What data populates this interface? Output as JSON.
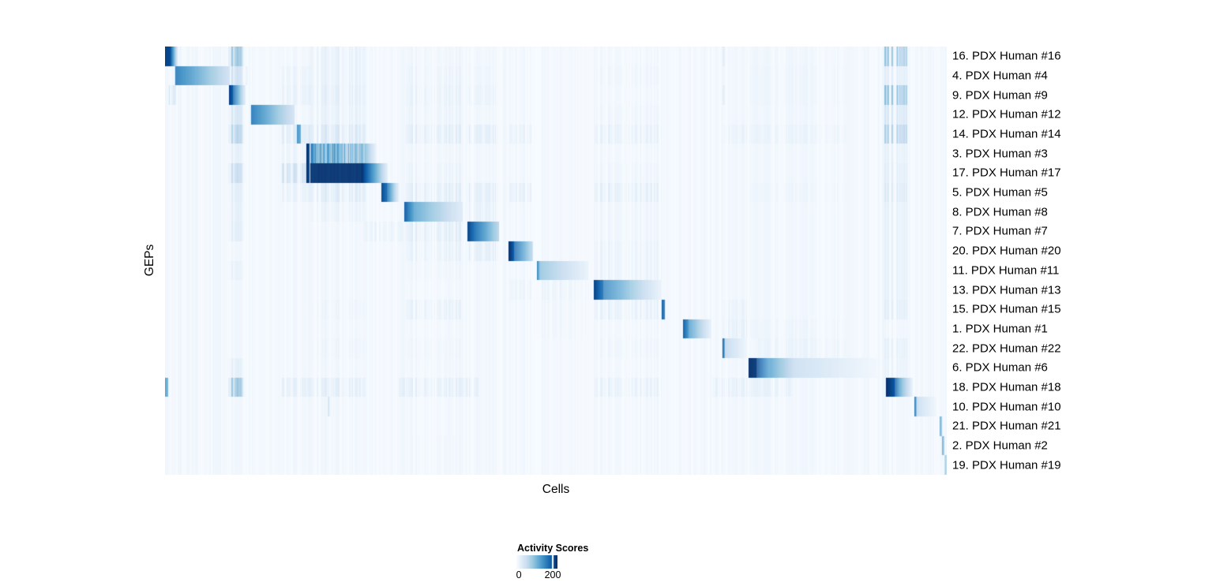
{
  "page": {
    "background": "#ffffff"
  },
  "chart_data": {
    "type": "heatmap",
    "title": "",
    "xlabel": "Cells",
    "ylabel": "GEPs",
    "n_rows": 22,
    "grid": false,
    "legend_position": "bottom-center",
    "colormap": {
      "name": "Blues",
      "stops": [
        [
          0.0,
          247,
          251,
          255
        ],
        [
          0.13,
          222,
          235,
          247
        ],
        [
          0.26,
          198,
          219,
          239
        ],
        [
          0.39,
          158,
          202,
          225
        ],
        [
          0.52,
          107,
          174,
          214
        ],
        [
          0.65,
          66,
          146,
          198
        ],
        [
          0.78,
          33,
          113,
          181
        ],
        [
          0.9,
          8,
          81,
          156
        ],
        [
          1.0,
          8,
          48,
          107
        ]
      ]
    },
    "legend": {
      "title": "Activity Scores",
      "ticks": [
        {
          "label": "0",
          "pos": 0.06,
          "marker": false
        },
        {
          "label": "200",
          "pos": 0.885,
          "marker": true
        }
      ]
    },
    "base_noise": 0.045,
    "rows": [
      {
        "label": "16. PDX Human #16",
        "blocks": [
          [
            0.0,
            0.006,
            0.95,
            0.92
          ],
          [
            0.006,
            0.0155,
            0.92,
            0.12
          ]
        ],
        "noise": [
          [
            0.082,
            0.102,
            0.42
          ],
          [
            0.186,
            0.256,
            0.1
          ],
          [
            0.307,
            0.38,
            0.06
          ],
          [
            0.713,
            0.717,
            0.22
          ],
          [
            0.747,
            0.87,
            0.05
          ],
          [
            0.92,
            0.95,
            0.42
          ]
        ]
      },
      {
        "label": "4. PDX Human #4",
        "blocks": [
          [
            0.013,
            0.082,
            0.72,
            0.2
          ]
        ],
        "noise": [
          [
            0.082,
            0.105,
            0.22
          ],
          [
            0.148,
            0.185,
            0.08
          ],
          [
            0.186,
            0.256,
            0.1
          ],
          [
            0.307,
            0.38,
            0.08
          ],
          [
            0.387,
            0.428,
            0.06
          ],
          [
            0.549,
            0.632,
            0.06
          ],
          [
            0.713,
            0.717,
            0.1
          ],
          [
            0.747,
            0.87,
            0.06
          ],
          [
            0.92,
            0.95,
            0.12
          ]
        ]
      },
      {
        "label": "9. PDX Human #9",
        "blocks": [
          [
            0.0818,
            0.0865,
            0.95,
            0.85
          ],
          [
            0.0865,
            0.1025,
            0.85,
            0.12
          ]
        ],
        "noise": [
          [
            0.003,
            0.014,
            0.25
          ],
          [
            0.148,
            0.185,
            0.1
          ],
          [
            0.186,
            0.256,
            0.12
          ],
          [
            0.307,
            0.38,
            0.1
          ],
          [
            0.387,
            0.428,
            0.08
          ],
          [
            0.713,
            0.717,
            0.2
          ],
          [
            0.747,
            0.87,
            0.06
          ],
          [
            0.92,
            0.95,
            0.45
          ]
        ]
      },
      {
        "label": "12. PDX Human #12",
        "blocks": [
          [
            0.11,
            0.165,
            0.72,
            0.18
          ]
        ],
        "noise": [
          [
            0.082,
            0.102,
            0.18
          ],
          [
            0.186,
            0.256,
            0.1
          ],
          [
            0.307,
            0.38,
            0.08
          ],
          [
            0.549,
            0.632,
            0.06
          ],
          [
            0.747,
            0.87,
            0.05
          ],
          [
            0.92,
            0.95,
            0.18
          ]
        ]
      },
      {
        "label": "14. PDX Human #14",
        "blocks": [
          [
            0.1687,
            0.1737,
            0.62,
            0.5
          ]
        ],
        "noise": [
          [
            0.082,
            0.102,
            0.32
          ],
          [
            0.148,
            0.185,
            0.15
          ],
          [
            0.186,
            0.256,
            0.18
          ],
          [
            0.307,
            0.38,
            0.14
          ],
          [
            0.387,
            0.428,
            0.12
          ],
          [
            0.44,
            0.47,
            0.1
          ],
          [
            0.549,
            0.632,
            0.1
          ],
          [
            0.713,
            0.744,
            0.08
          ],
          [
            0.747,
            0.87,
            0.08
          ],
          [
            0.92,
            0.95,
            0.35
          ]
        ]
      },
      {
        "label": "3. PDX Human #3",
        "blocks": [
          [
            0.1808,
            0.184,
            1.0,
            0.92
          ],
          [
            0.1859,
            0.2556,
            0.78,
            0.5,
            0.55
          ],
          [
            0.2556,
            0.27,
            0.42,
            0.06
          ]
        ],
        "noise": [
          [
            0.082,
            0.102,
            0.1
          ],
          [
            0.148,
            0.185,
            0.08
          ],
          [
            0.307,
            0.38,
            0.06
          ],
          [
            0.92,
            0.95,
            0.1
          ]
        ]
      },
      {
        "label": "17. PDX Human #17",
        "blocks": [
          [
            0.1808,
            0.184,
            1.0,
            0.92
          ],
          [
            0.1859,
            0.2515,
            1.0,
            0.99,
            0.03
          ],
          [
            0.2515,
            0.284,
            0.99,
            0.1
          ]
        ],
        "noise": [
          [
            0.082,
            0.102,
            0.25
          ],
          [
            0.148,
            0.185,
            0.25
          ],
          [
            0.307,
            0.38,
            0.08
          ],
          [
            0.549,
            0.632,
            0.06
          ],
          [
            0.92,
            0.95,
            0.12
          ]
        ]
      },
      {
        "label": "5. PDX Human #5",
        "blocks": [
          [
            0.2768,
            0.283,
            0.92,
            0.8
          ],
          [
            0.283,
            0.299,
            0.8,
            0.08
          ]
        ],
        "noise": [
          [
            0.082,
            0.102,
            0.12
          ],
          [
            0.148,
            0.185,
            0.1
          ],
          [
            0.186,
            0.256,
            0.15
          ],
          [
            0.307,
            0.38,
            0.14
          ],
          [
            0.387,
            0.428,
            0.12
          ],
          [
            0.44,
            0.47,
            0.12
          ],
          [
            0.549,
            0.632,
            0.12
          ],
          [
            0.747,
            0.87,
            0.06
          ],
          [
            0.92,
            0.95,
            0.15
          ]
        ]
      },
      {
        "label": "8. PDX Human #8",
        "blocks": [
          [
            0.3061,
            0.318,
            0.85,
            0.55
          ],
          [
            0.318,
            0.3798,
            0.55,
            0.13
          ]
        ],
        "noise": [
          [
            0.082,
            0.102,
            0.1
          ],
          [
            0.186,
            0.256,
            0.08
          ],
          [
            0.387,
            0.428,
            0.1
          ],
          [
            0.549,
            0.632,
            0.06
          ],
          [
            0.92,
            0.95,
            0.1
          ]
        ]
      },
      {
        "label": "7. PDX Human #7",
        "blocks": [
          [
            0.3869,
            0.394,
            0.95,
            0.8
          ],
          [
            0.394,
            0.4273,
            0.8,
            0.28
          ]
        ],
        "noise": [
          [
            0.082,
            0.102,
            0.12
          ],
          [
            0.255,
            0.305,
            0.1
          ],
          [
            0.307,
            0.38,
            0.14
          ],
          [
            0.549,
            0.632,
            0.06
          ],
          [
            0.92,
            0.95,
            0.1
          ]
        ]
      },
      {
        "label": "20. PDX Human #20",
        "blocks": [
          [
            0.4394,
            0.446,
            1.0,
            0.85
          ],
          [
            0.446,
            0.4697,
            0.85,
            0.3
          ]
        ],
        "noise": [
          [
            0.307,
            0.38,
            0.1
          ],
          [
            0.387,
            0.428,
            0.12
          ],
          [
            0.549,
            0.632,
            0.08
          ],
          [
            0.92,
            0.95,
            0.1
          ]
        ]
      },
      {
        "label": "11. PDX Human #11",
        "blocks": [
          [
            0.4758,
            0.479,
            0.7,
            0.42
          ],
          [
            0.479,
            0.5414,
            0.42,
            0.07
          ]
        ],
        "noise": [
          [
            0.082,
            0.102,
            0.08
          ],
          [
            0.307,
            0.38,
            0.06
          ],
          [
            0.549,
            0.632,
            0.08
          ],
          [
            0.92,
            0.95,
            0.1
          ]
        ]
      },
      {
        "label": "13. PDX Human #13",
        "blocks": [
          [
            0.5485,
            0.56,
            0.95,
            0.72
          ],
          [
            0.56,
            0.634,
            0.72,
            0.08
          ]
        ],
        "noise": [
          [
            0.44,
            0.47,
            0.08
          ],
          [
            0.476,
            0.54,
            0.08
          ],
          [
            0.92,
            0.95,
            0.1
          ]
        ]
      },
      {
        "label": "15. PDX Human #15",
        "blocks": [
          [
            0.6354,
            0.6388,
            0.85,
            0.7
          ]
        ],
        "noise": [
          [
            0.186,
            0.256,
            0.06
          ],
          [
            0.307,
            0.38,
            0.1
          ],
          [
            0.476,
            0.54,
            0.06
          ],
          [
            0.549,
            0.632,
            0.1
          ],
          [
            0.713,
            0.744,
            0.08
          ],
          [
            0.92,
            0.95,
            0.12
          ]
        ]
      },
      {
        "label": "1. PDX Human #1",
        "blocks": [
          [
            0.6626,
            0.669,
            0.82,
            0.62
          ],
          [
            0.669,
            0.698,
            0.62,
            0.1
          ]
        ],
        "noise": [
          [
            0.476,
            0.54,
            0.06
          ],
          [
            0.713,
            0.744,
            0.1
          ],
          [
            0.747,
            0.87,
            0.06
          ]
        ]
      },
      {
        "label": "22. PDX Human #22",
        "blocks": [
          [
            0.7131,
            0.7158,
            0.78,
            0.62
          ],
          [
            0.7158,
            0.7434,
            0.3,
            0.05
          ]
        ],
        "noise": [
          [
            0.186,
            0.256,
            0.06
          ],
          [
            0.307,
            0.38,
            0.06
          ],
          [
            0.549,
            0.632,
            0.06
          ],
          [
            0.76,
            0.87,
            0.08
          ],
          [
            0.92,
            0.95,
            0.1
          ]
        ]
      },
      {
        "label": "6. PDX Human #6",
        "blocks": [
          [
            0.7465,
            0.756,
            1.0,
            0.96
          ],
          [
            0.756,
            0.7737,
            0.96,
            0.55
          ],
          [
            0.7737,
            0.805,
            0.5,
            0.2
          ],
          [
            0.805,
            0.9101,
            0.2,
            0.03
          ]
        ],
        "noise": [
          [
            0.082,
            0.102,
            0.1
          ],
          [
            0.307,
            0.38,
            0.05
          ],
          [
            0.92,
            0.95,
            0.08
          ]
        ]
      },
      {
        "label": "18. PDX Human #18",
        "blocks": [
          [
            0.0,
            0.004,
            0.55,
            0.45
          ],
          [
            0.9222,
            0.933,
            1.0,
            0.88
          ],
          [
            0.933,
            0.9384,
            0.88,
            0.6
          ],
          [
            0.9384,
            0.9556,
            0.52,
            0.07
          ]
        ],
        "noise": [
          [
            0.082,
            0.102,
            0.42
          ],
          [
            0.148,
            0.185,
            0.12
          ],
          [
            0.186,
            0.256,
            0.12
          ],
          [
            0.3,
            0.4,
            0.12
          ],
          [
            0.549,
            0.632,
            0.1
          ],
          [
            0.7,
            0.8,
            0.1
          ]
        ]
      },
      {
        "label": "10. PDX Human #10",
        "blocks": [
          [
            0.9586,
            0.9612,
            0.7,
            0.52
          ],
          [
            0.9612,
            0.9859,
            0.26,
            0.04
          ]
        ],
        "noise": [
          [
            0.209,
            0.213,
            0.3
          ]
        ]
      },
      {
        "label": "21. PDX Human #21",
        "blocks": [
          [
            0.9909,
            0.993,
            0.48,
            0.38
          ]
        ],
        "noise": []
      },
      {
        "label": "2. PDX Human #2",
        "blocks": [
          [
            0.9939,
            0.996,
            0.48,
            0.34
          ]
        ],
        "noise": [
          [
            0.307,
            0.38,
            0.05
          ]
        ]
      },
      {
        "label": "19. PDX Human #19",
        "blocks": [
          [
            0.9975,
            1.0,
            0.42,
            0.3
          ]
        ],
        "noise": [
          [
            0.307,
            0.38,
            0.05
          ]
        ]
      }
    ]
  }
}
